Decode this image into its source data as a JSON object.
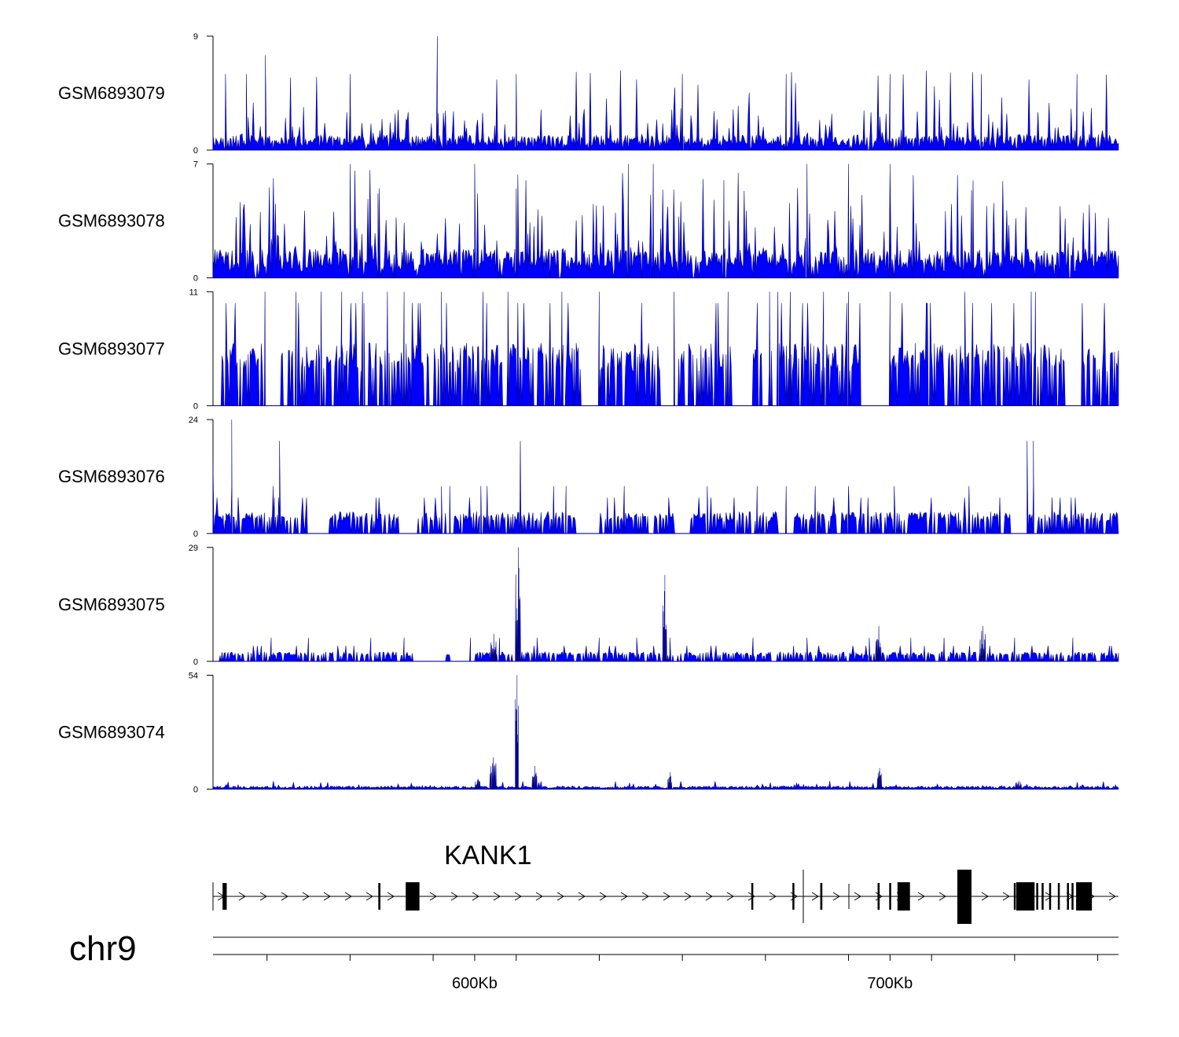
{
  "chart_data": {
    "type": "area",
    "title": "",
    "chromosome": "chr9",
    "xlim_kb": [
      537,
      755
    ],
    "x_tick_labels": [
      {
        "kb": 600,
        "label": "600Kb"
      },
      {
        "kb": 700,
        "label": "700Kb"
      }
    ],
    "x_minor_ticks_kb": [
      550,
      570,
      590,
      610,
      630,
      650,
      670,
      690,
      710,
      730,
      750
    ],
    "gene": {
      "name": "KANK1",
      "strand": "+",
      "start_kb": 537,
      "end_kb": 755,
      "exons_kb": [
        [
          539.3,
          540.3
        ],
        [
          576.8,
          577.3
        ],
        [
          583.4,
          586.7
        ],
        [
          666.6,
          666.8
        ],
        [
          676.5,
          676.7
        ],
        [
          683.2,
          683.7
        ],
        [
          697.0,
          697.5
        ],
        [
          699.8,
          700.1
        ],
        [
          701.8,
          704.8
        ],
        [
          729.8,
          730.0
        ],
        [
          730.4,
          734.8
        ],
        [
          735.2,
          735.5
        ],
        [
          736.5,
          736.8
        ],
        [
          738.3,
          738.6
        ],
        [
          740.4,
          740.8
        ],
        [
          742.6,
          742.9
        ],
        [
          743.7,
          743.9
        ],
        [
          744.8,
          748.6
        ]
      ]
    },
    "series": [
      {
        "name": "GSM6893079",
        "ylim": [
          0,
          9
        ],
        "color": "#0000ff",
        "style": "dense",
        "baseline": 0.8,
        "noise_max": 2.5,
        "peaks": [
          {
            "x": 591,
            "y": 9
          },
          {
            "x": 549.6,
            "y": 7.5
          },
          {
            "x": 675,
            "y": 6
          },
          {
            "x": 540,
            "y": 6
          },
          {
            "x": 545,
            "y": 6
          },
          {
            "x": 570,
            "y": 6
          },
          {
            "x": 610,
            "y": 6
          },
          {
            "x": 650,
            "y": 6
          },
          {
            "x": 700,
            "y": 6
          },
          {
            "x": 722,
            "y": 6
          },
          {
            "x": 745,
            "y": 6
          }
        ]
      },
      {
        "name": "GSM6893078",
        "ylim": [
          0,
          7
        ],
        "color": "#0000ff",
        "style": "dense",
        "baseline": 1.2,
        "noise_max": 3.5,
        "peaks": [
          {
            "x": 570,
            "y": 7
          },
          {
            "x": 600,
            "y": 7
          },
          {
            "x": 637,
            "y": 7
          },
          {
            "x": 643,
            "y": 7
          },
          {
            "x": 680,
            "y": 7
          },
          {
            "x": 690,
            "y": 7
          },
          {
            "x": 700,
            "y": 7
          },
          {
            "x": 577,
            "y": 5.5
          },
          {
            "x": 610,
            "y": 5.5
          },
          {
            "x": 660,
            "y": 6
          },
          {
            "x": 720,
            "y": 6
          }
        ]
      },
      {
        "name": "GSM6893077",
        "ylim": [
          0,
          11
        ],
        "color": "#0000ff",
        "style": "sparse",
        "start_kb": 539,
        "count_level": 5.5,
        "spike_level": 11,
        "spikes_kb": [
          549.5,
          557,
          563,
          568,
          573,
          579,
          583,
          592,
          602,
          608,
          621,
          630,
          648,
          661,
          671,
          673,
          676,
          684,
          690,
          700,
          718,
          734
        ],
        "gaps_kb": [
          [
            549,
            553
          ],
          [
            626,
            630
          ],
          [
            645,
            649
          ],
          [
            662,
            667
          ],
          [
            693,
            700
          ],
          [
            742,
            746
          ]
        ],
        "hump": {
          "x": 735,
          "y": 11
        }
      },
      {
        "name": "GSM6893076",
        "ylim": [
          0,
          24
        ],
        "color": "#0000ff",
        "style": "sparse",
        "start_kb": 537,
        "count_level": 4.2,
        "spike_level": 10,
        "spikes_kb": [
          541.5,
          551.5,
          553,
          592,
          594,
          601.5,
          603,
          619,
          622,
          636,
          656,
          668,
          675,
          682,
          690,
          701,
          719,
          733,
          734.5
        ],
        "tall_spikes_kb": [
          [
            541.5,
            24
          ],
          [
            553,
            19.5
          ],
          [
            611,
            19.5
          ],
          [
            733,
            19.5
          ],
          [
            734.5,
            19.5
          ]
        ],
        "gaps_kb": [
          [
            560,
            565
          ],
          [
            582,
            586
          ],
          [
            625,
            630
          ],
          [
            648,
            652
          ],
          [
            673,
            677
          ],
          [
            729,
            733
          ]
        ],
        "hump": {
          "x": 537,
          "y": 14.5
        }
      },
      {
        "name": "GSM6893075",
        "ylim": [
          0,
          29
        ],
        "color": "#0000ff",
        "style": "sparse",
        "start_kb": 538.5,
        "count_level": 2.2,
        "spike_level": 6,
        "spikes_kb": [
          551,
          560,
          575,
          583,
          599,
          606,
          615,
          630,
          639,
          647,
          667,
          680,
          695,
          705,
          713,
          722,
          730,
          744
        ],
        "gaps_kb": [
          [
            585,
            593
          ],
          [
            594,
            600
          ]
        ],
        "clusters": [
          {
            "x": 610.5,
            "y": 29,
            "width": 1.2
          },
          {
            "x": 645.8,
            "y": 22,
            "width": 1.0
          },
          {
            "x": 604.6,
            "y": 7,
            "width": 1.4
          },
          {
            "x": 697.3,
            "y": 9,
            "width": 1.4
          },
          {
            "x": 722.4,
            "y": 9,
            "width": 1.4
          }
        ]
      },
      {
        "name": "GSM6893074",
        "ylim": [
          0,
          54
        ],
        "color": "#0000ff",
        "style": "line",
        "baseline": 0.8,
        "noise_max": 3,
        "clusters": [
          {
            "x": 610.2,
            "y": 54,
            "width": 0.8
          },
          {
            "x": 604.5,
            "y": 15,
            "width": 1.6
          },
          {
            "x": 614.5,
            "y": 11,
            "width": 1.2
          },
          {
            "x": 647,
            "y": 8,
            "width": 1.0
          },
          {
            "x": 697.5,
            "y": 10,
            "width": 1.0
          },
          {
            "x": 600.8,
            "y": 5,
            "width": 1.2
          },
          {
            "x": 731,
            "y": 4,
            "width": 1.5
          }
        ]
      }
    ]
  }
}
